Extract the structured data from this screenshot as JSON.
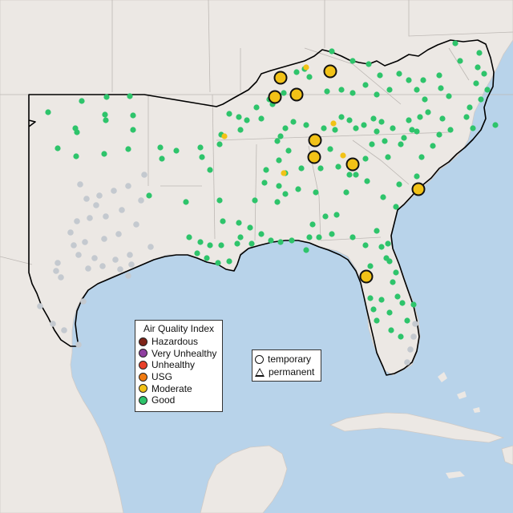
{
  "legend": {
    "title": "Air Quality Index",
    "categories": [
      {
        "label": "Hazardous",
        "color": "#7e2418"
      },
      {
        "label": "Very Unhealthy",
        "color": "#8f3fa0"
      },
      {
        "label": "Unhealthy",
        "color": "#e8402a"
      },
      {
        "label": "USG",
        "color": "#f07a10"
      },
      {
        "label": "Moderate",
        "color": "#f2c217"
      },
      {
        "label": "Good",
        "color": "#2ec46b"
      }
    ]
  },
  "site_type_legend": {
    "temporary": "temporary",
    "permanent": "permanent"
  },
  "colors": {
    "ocean": "#b8d3ea",
    "land": "#ece8e4",
    "region_outline": "#000000",
    "inactive_site": "#c4c9cf"
  }
}
